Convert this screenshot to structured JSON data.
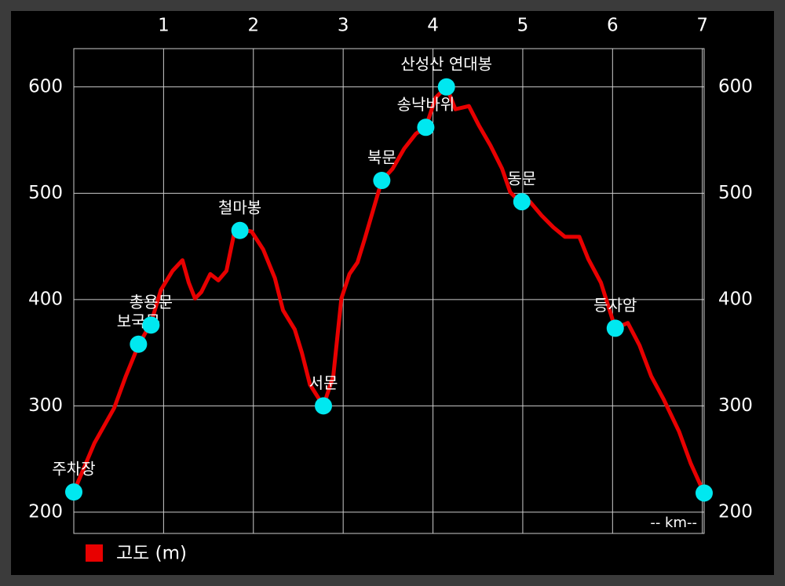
{
  "chart_data": {
    "type": "line",
    "x_label": "-- km--",
    "xlim": [
      0,
      7.02
    ],
    "ylim": [
      180,
      636
    ],
    "xticks": [
      1,
      2,
      3,
      4,
      5,
      6,
      7
    ],
    "yticks": [
      200,
      300,
      400,
      500,
      600
    ],
    "grid": true,
    "legend": "bottom-left",
    "series": [
      {
        "name": "고도 (m)",
        "color": "#e80000",
        "x": [
          0,
          0.23,
          0.31,
          0.45,
          0.58,
          0.72,
          0.86,
          0.97,
          1.1,
          1.21,
          1.28,
          1.35,
          1.42,
          1.52,
          1.61,
          1.7,
          1.79,
          1.85,
          1.98,
          2.11,
          2.24,
          2.33,
          2.46,
          2.54,
          2.63,
          2.78,
          2.89,
          2.98,
          3.07,
          3.16,
          3.24,
          3.33,
          3.43,
          3.55,
          3.68,
          3.81,
          3.92,
          4.03,
          4.15,
          4.25,
          4.4,
          4.51,
          4.64,
          4.77,
          4.86,
          4.99,
          5.08,
          5.21,
          5.34,
          5.47,
          5.63,
          5.73,
          5.87,
          6.03,
          6.17,
          6.3,
          6.43,
          6.57,
          6.74,
          6.87,
          7.02
        ],
        "values": [
          219,
          265,
          277,
          298,
          328,
          357,
          378,
          409,
          427,
          437,
          416,
          401,
          407,
          424,
          418,
          427,
          464,
          466,
          464,
          447,
          420,
          390,
          372,
          350,
          320,
          300,
          328,
          401,
          424,
          435,
          457,
          483,
          512,
          523,
          542,
          556,
          562,
          590,
          600,
          579,
          582,
          564,
          545,
          523,
          501,
          490,
          492,
          479,
          468,
          459,
          459,
          438,
          416,
          373,
          378,
          357,
          328,
          306,
          276,
          246,
          218
        ]
      }
    ],
    "waypoints": {
      "color": "#00e8f0",
      "labels": [
        "주차장",
        "보국문",
        "총용문",
        "철마봉",
        "서문",
        "북문",
        "송낙바위",
        "산성산 연대봉",
        "동문",
        "등자암",
        null
      ],
      "x": [
        0,
        0.72,
        0.86,
        1.85,
        2.78,
        3.43,
        3.92,
        4.15,
        4.99,
        6.03,
        7.02
      ],
      "values": [
        219,
        358,
        376,
        465,
        300,
        512,
        562,
        600,
        492,
        373,
        218
      ]
    }
  }
}
